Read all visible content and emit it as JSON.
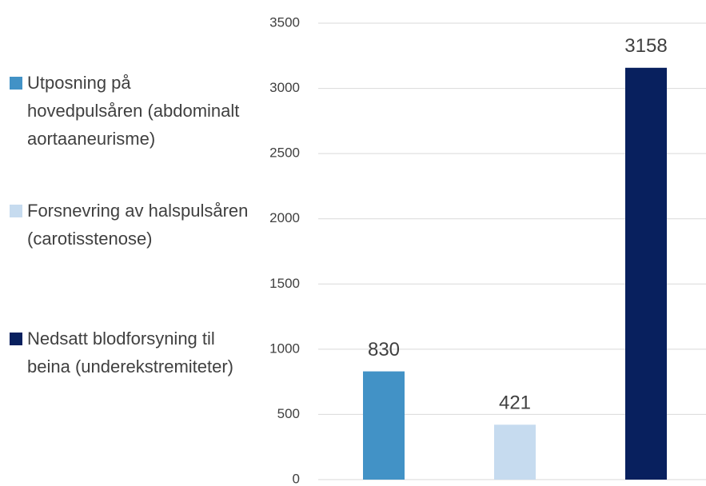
{
  "chart_data": {
    "type": "bar",
    "series": [
      {
        "name": "Utposning på hovedpulsåren (abdominalt aortaaneurisme)",
        "color": "#4292c6",
        "values": [
          830
        ]
      },
      {
        "name": "Forsnevring av halspulsåren (carotisstenose)",
        "color": "#c6dbef",
        "values": [
          421
        ]
      },
      {
        "name": "Nedsatt blodforsyning til beina (underekstremiteter)",
        "color": "#08205e",
        "values": [
          3158
        ]
      }
    ],
    "ylim": [
      0,
      3500
    ],
    "yticks": [
      0,
      500,
      1000,
      1500,
      2000,
      2500,
      3000,
      3500
    ],
    "grid": true,
    "legend": "left"
  }
}
